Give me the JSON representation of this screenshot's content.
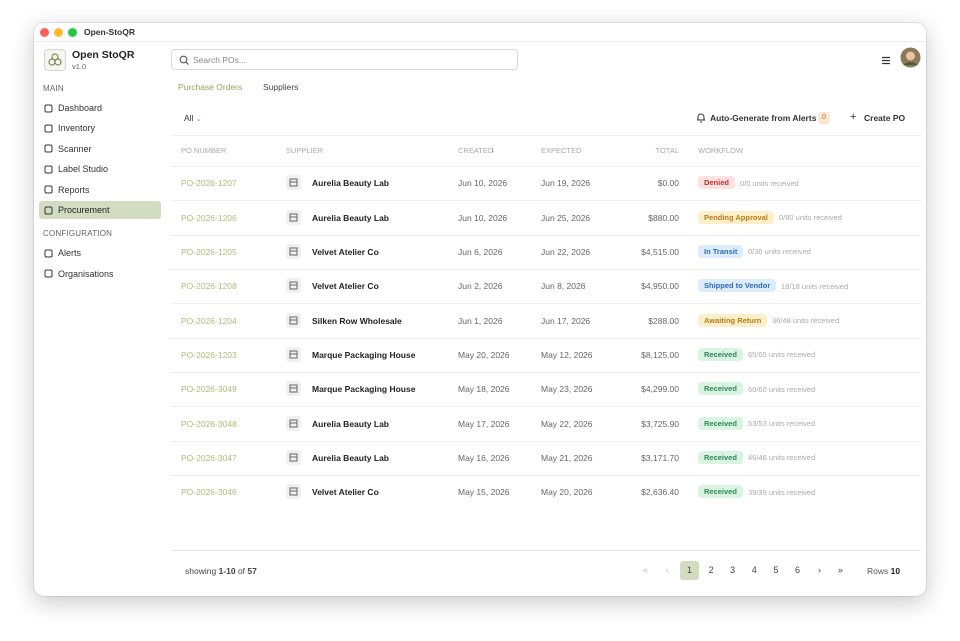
{
  "window": {
    "title": "Open-StoQR"
  },
  "sidebar": {
    "app_name": "Open StoQR",
    "version": "v1.0",
    "sections": [
      {
        "heading": "MAIN",
        "items": [
          {
            "label": "Dashboard",
            "active": false
          },
          {
            "label": "Inventory",
            "active": false
          },
          {
            "label": "Scanner",
            "active": false
          },
          {
            "label": "Label Studio",
            "active": false
          },
          {
            "label": "Reports",
            "active": false
          },
          {
            "label": "Procurement",
            "active": true
          }
        ]
      },
      {
        "heading": "CONFIGURATION",
        "items": [
          {
            "label": "Alerts",
            "active": false
          },
          {
            "label": "Organisations",
            "active": false
          }
        ]
      }
    ]
  },
  "toolbar": {
    "search_placeholder": "Search POs..."
  },
  "tabs": [
    {
      "label": "Purchase Orders",
      "active": true
    },
    {
      "label": "Suppliers",
      "active": false
    }
  ],
  "actions": {
    "filter": "All",
    "auto_generate": "Auto-Generate from Alerts",
    "alert_count": 0,
    "create": "Create PO"
  },
  "table": {
    "columns": [
      "PO NUMBER",
      "SUPPLIER",
      "CREATED",
      "EXPECTED",
      "TOTAL",
      "WORKFLOW"
    ],
    "rows": [
      {
        "po": "PO-2026-1207",
        "supplier": "Aurelia Beauty Lab",
        "created": "Jun 10, 2026",
        "expected": "Jun 19, 2026",
        "total": "$0.00",
        "status": "Denied",
        "status_color": "red",
        "units": "0/0 units received"
      },
      {
        "po": "PO-2026-1206",
        "supplier": "Aurelia Beauty Lab",
        "created": "Jun 10, 2026",
        "expected": "Jun 25, 2026",
        "total": "$880.00",
        "status": "Pending Approval",
        "status_color": "amber",
        "units": "0/80 units received"
      },
      {
        "po": "PO-2026-1205",
        "supplier": "Velvet Atelier Co",
        "created": "Jun 6, 2026",
        "expected": "Jun 22, 2026",
        "total": "$4,515.00",
        "status": "In Transit",
        "status_color": "blue",
        "units": "0/36 units received"
      },
      {
        "po": "PO-2026-1208",
        "supplier": "Velvet Atelier Co",
        "created": "Jun 2, 2026",
        "expected": "Jun 8, 2026",
        "total": "$4,950.00",
        "status": "Shipped to Vendor",
        "status_color": "blue",
        "units": "18/18 units received"
      },
      {
        "po": "PO-2026-1204",
        "supplier": "Silken Row Wholesale",
        "created": "Jun 1, 2026",
        "expected": "Jun 17, 2026",
        "total": "$288.00",
        "status": "Awaiting Return",
        "status_color": "amber",
        "units": "36/48 units received"
      },
      {
        "po": "PO-2026-1203",
        "supplier": "Marque Packaging House",
        "created": "May 20, 2026",
        "expected": "May 12, 2026",
        "total": "$8,125.00",
        "status": "Received",
        "status_color": "green",
        "units": "65/65 units received"
      },
      {
        "po": "PO-2026-3049",
        "supplier": "Marque Packaging House",
        "created": "May 18, 2026",
        "expected": "May 23, 2026",
        "total": "$4,299.00",
        "status": "Received",
        "status_color": "green",
        "units": "60/60 units received"
      },
      {
        "po": "PO-2026-3048",
        "supplier": "Aurelia Beauty Lab",
        "created": "May 17, 2026",
        "expected": "May 22, 2026",
        "total": "$3,725.90",
        "status": "Received",
        "status_color": "green",
        "units": "53/53 units received"
      },
      {
        "po": "PO-2026-3047",
        "supplier": "Aurelia Beauty Lab",
        "created": "May 16, 2026",
        "expected": "May 21, 2026",
        "total": "$3,171.70",
        "status": "Received",
        "status_color": "green",
        "units": "46/46 units received"
      },
      {
        "po": "PO-2026-3046",
        "supplier": "Velvet Atelier Co",
        "created": "May 15, 2026",
        "expected": "May 20, 2026",
        "total": "$2,636.40",
        "status": "Received",
        "status_color": "green",
        "units": "39/39 units received"
      }
    ]
  },
  "footer": {
    "showing": "showing",
    "range": "1-10",
    "of": "of",
    "total": 57,
    "pages": [
      1,
      2,
      3,
      4,
      5,
      6
    ],
    "current_page": 1,
    "rows_label": "Rows",
    "rows_per_page": 10
  }
}
